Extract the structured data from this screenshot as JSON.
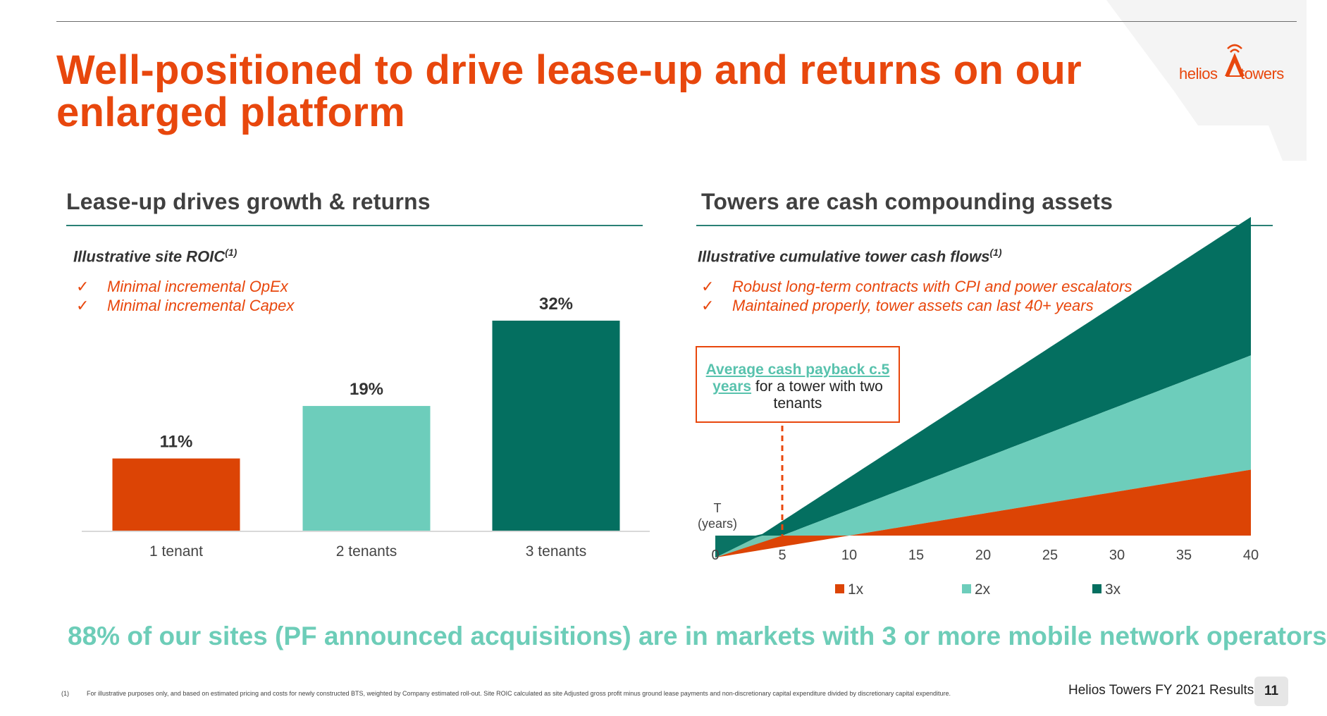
{
  "header": {
    "title": "Well-positioned to drive lease-up and returns on our enlarged platform",
    "logo": {
      "word1": "helios",
      "word2": "towers",
      "icon": "tower-icon"
    }
  },
  "left_panel": {
    "section_title": "Lease-up drives growth & returns",
    "subhead": "Illustrative site ROIC",
    "subhead_sup": "(1)",
    "bullets": [
      "Minimal incremental OpEx",
      "Minimal incremental Capex"
    ]
  },
  "right_panel": {
    "section_title": "Towers are cash compounding assets",
    "subhead": "Illustrative cumulative tower cash flows",
    "subhead_sup": "(1)",
    "bullets": [
      "Robust long-term contracts with CPI and power escalators",
      "Maintained properly, tower assets can last 40+ years"
    ],
    "callout": {
      "highlight": "Average cash payback c.5 years",
      "rest": "for a tower with two tenants"
    },
    "axis_start_label": "T (years)"
  },
  "chart_data": [
    {
      "type": "bar",
      "title": "",
      "xlabel": "",
      "ylabel": "",
      "categories": [
        "1 tenant",
        "2 tenants",
        "3 tenants"
      ],
      "values": [
        11,
        19,
        32
      ],
      "value_labels": [
        "11%",
        "19%",
        "32%"
      ],
      "ylim": [
        0,
        32
      ],
      "colors": [
        "#dc4405",
        "#6dcdbb",
        "#046f60"
      ],
      "grid": false,
      "legend": "none"
    },
    {
      "type": "area",
      "title": "",
      "xlabel": "T (years)",
      "ylabel": "",
      "x": [
        0,
        5,
        10,
        15,
        20,
        25,
        30,
        35,
        40
      ],
      "xlim": [
        0,
        40
      ],
      "ylim": [
        -1,
        9.3
      ],
      "series": [
        {
          "name": "1x",
          "color": "#dc4405",
          "points": [
            [
              0,
              -1
            ],
            [
              10,
              0
            ],
            [
              40,
              3
            ]
          ]
        },
        {
          "name": "2x",
          "color": "#6dcdbb",
          "points": [
            [
              0,
              -1
            ],
            [
              5,
              0
            ],
            [
              40,
              8.2
            ]
          ]
        },
        {
          "name": "3x",
          "color": "#046f60",
          "points": [
            [
              0,
              -1
            ],
            [
              3.33,
              0
            ],
            [
              40,
              14.5
            ]
          ]
        }
      ],
      "payback_year": 5,
      "grid": false,
      "legend": "bottom"
    }
  ],
  "tagline": "88% of our sites (PF announced acquisitions) are in markets with 3 or more mobile network operators",
  "footer": {
    "footnote_number": "(1)",
    "footnote_text": "For illustrative purposes only, and based on estimated pricing and costs for newly constructed BTS, weighted by Company estimated roll-out. Site ROIC calculated as site Adjusted gross profit minus ground lease payments and non-discretionary capital expenditure divided by  discretionary capital expenditure.",
    "title": "Helios Towers FY 2021 Results",
    "page_number": "11"
  }
}
